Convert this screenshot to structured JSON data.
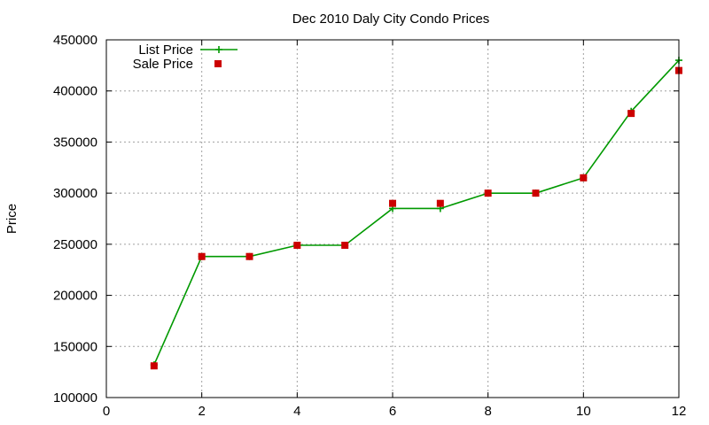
{
  "chart_data": {
    "type": "line",
    "title": "Dec 2010 Daly City Condo Prices",
    "xlabel": "",
    "ylabel": "Price",
    "xlim": [
      0,
      12
    ],
    "ylim": [
      100000,
      450000
    ],
    "x_ticks": [
      0,
      2,
      4,
      6,
      8,
      10,
      12
    ],
    "y_ticks": [
      100000,
      150000,
      200000,
      250000,
      300000,
      350000,
      400000,
      450000
    ],
    "grid": true,
    "legend_position": "top-left",
    "series": [
      {
        "name": "List Price",
        "style": "line-with-plus-markers",
        "color": "#009900",
        "x": [
          1,
          2,
          3,
          4,
          5,
          6,
          7,
          8,
          9,
          10,
          11,
          12
        ],
        "values": [
          132000,
          238000,
          238000,
          249000,
          249000,
          285000,
          285000,
          300000,
          300000,
          315000,
          380000,
          430000
        ]
      },
      {
        "name": "Sale Price",
        "style": "square-markers",
        "color": "#cc0000",
        "x": [
          1,
          2,
          3,
          4,
          5,
          6,
          7,
          8,
          9,
          10,
          11,
          12
        ],
        "values": [
          131000,
          238000,
          238000,
          249000,
          249000,
          290000,
          290000,
          300000,
          300000,
          315000,
          378000,
          420000
        ]
      }
    ]
  }
}
